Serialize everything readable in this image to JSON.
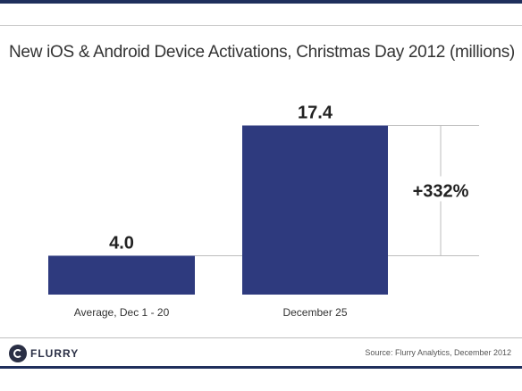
{
  "title": "New iOS & Android Device Activations, Christmas Day 2012 (millions)",
  "chart_data": {
    "type": "bar",
    "categories": [
      "Average, Dec 1 - 20",
      "December 25"
    ],
    "values": [
      4.0,
      17.4
    ],
    "value_labels": [
      "4.0",
      "17.4"
    ],
    "annotation": "+332%",
    "bar_color": "#2e3a7e",
    "ylim": [
      0,
      18
    ],
    "grid": false
  },
  "footer": {
    "logo_text": "FLURRY",
    "source": "Source: Flurry Analytics, December 2012"
  },
  "colors": {
    "bar": "#2e3a7e",
    "brand_rule": "#1f2f5c",
    "guide_line": "#bdbdbd"
  }
}
